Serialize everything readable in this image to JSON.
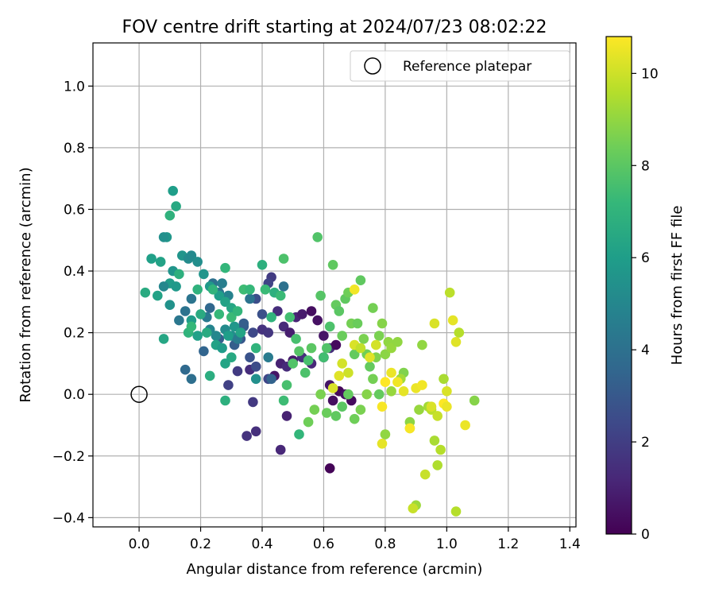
{
  "chart_data": {
    "type": "scatter",
    "title": "FOV centre drift starting at 2024/07/23 08:02:22",
    "xlabel": "Angular distance from reference (arcmin)",
    "ylabel": "Rotation from reference (arcmin)",
    "xlim": [
      -0.15,
      1.42
    ],
    "ylim": [
      -0.43,
      1.14
    ],
    "xticks": [
      "0.0",
      "0.2",
      "0.4",
      "0.6",
      "0.8",
      "1.0",
      "1.2",
      "1.4"
    ],
    "yticks": [
      "−0.4",
      "−0.2",
      "0.0",
      "0.2",
      "0.4",
      "0.6",
      "0.8",
      "1.0"
    ],
    "xtick_values": [
      0.0,
      0.2,
      0.4,
      0.6,
      0.8,
      1.0,
      1.2,
      1.4
    ],
    "ytick_values": [
      -0.4,
      -0.2,
      0.0,
      0.2,
      0.4,
      0.6,
      0.8,
      1.0
    ],
    "grid": true,
    "legend": {
      "position": "top-right",
      "entries": [
        "Reference platepar"
      ]
    },
    "reference_point": {
      "x": 0.0,
      "y": 0.0
    },
    "colorbar": {
      "label": "Hours from first FF file",
      "range": [
        0,
        10.8
      ],
      "ticks": [
        "0",
        "2",
        "4",
        "6",
        "8",
        "10"
      ],
      "tick_values": [
        0,
        2,
        4,
        6,
        8,
        10
      ],
      "colormap": [
        "#440154",
        "#482878",
        "#3e4989",
        "#31688e",
        "#26828e",
        "#1f9e89",
        "#35b779",
        "#6ece58",
        "#b5de2b",
        "#fde725"
      ]
    },
    "series": [
      {
        "points": [
          [
            0.62,
            -0.24,
            0.1
          ],
          [
            0.46,
            -0.18,
            1.2
          ],
          [
            0.38,
            -0.12,
            1.5
          ],
          [
            0.35,
            -0.135,
            1.6
          ],
          [
            0.48,
            -0.07,
            1.0
          ],
          [
            0.37,
            -0.025,
            1.8
          ],
          [
            0.29,
            0.03,
            2.1
          ],
          [
            0.32,
            0.075,
            1.9
          ],
          [
            0.36,
            0.08,
            1.4
          ],
          [
            0.38,
            0.09,
            1.2
          ],
          [
            0.42,
            0.05,
            2.3
          ],
          [
            0.44,
            0.06,
            0.6
          ],
          [
            0.46,
            0.1,
            1.0
          ],
          [
            0.48,
            0.09,
            1.3
          ],
          [
            0.5,
            0.11,
            0.8
          ],
          [
            0.53,
            0.12,
            1.5
          ],
          [
            0.56,
            0.1,
            1.2
          ],
          [
            0.6,
            0.12,
            0.7
          ],
          [
            0.45,
            0.27,
            1.4
          ],
          [
            0.47,
            0.22,
            1.3
          ],
          [
            0.49,
            0.2,
            0.9
          ],
          [
            0.51,
            0.25,
            1.1
          ],
          [
            0.53,
            0.26,
            0.8
          ],
          [
            0.56,
            0.27,
            0.4
          ],
          [
            0.58,
            0.24,
            0.5
          ],
          [
            0.6,
            0.19,
            0.6
          ],
          [
            0.62,
            0.15,
            1.4
          ],
          [
            0.64,
            0.16,
            0.3
          ],
          [
            0.62,
            0.03,
            0.6
          ],
          [
            0.65,
            0.01,
            0.2
          ],
          [
            0.67,
            0.0,
            0.5
          ],
          [
            0.69,
            -0.02,
            0.3
          ],
          [
            0.63,
            -0.02,
            0.4
          ],
          [
            0.4,
            0.21,
            1.6
          ],
          [
            0.42,
            0.2,
            1.7
          ],
          [
            0.43,
            0.38,
            1.9
          ],
          [
            0.42,
            0.36,
            2.2
          ],
          [
            0.38,
            0.31,
            2.6
          ],
          [
            0.4,
            0.26,
            2.7
          ],
          [
            0.37,
            0.2,
            2.4
          ],
          [
            0.34,
            0.22,
            3.1
          ],
          [
            0.36,
            0.12,
            2.8
          ],
          [
            0.38,
            0.09,
            2.5
          ],
          [
            0.33,
            0.18,
            3.0
          ],
          [
            0.31,
            0.16,
            3.2
          ],
          [
            0.26,
            0.18,
            3.3
          ],
          [
            0.21,
            0.14,
            3.5
          ],
          [
            0.17,
            0.05,
            3.9
          ],
          [
            0.15,
            0.08,
            3.7
          ],
          [
            0.13,
            0.24,
            4.3
          ],
          [
            0.15,
            0.27,
            4.1
          ],
          [
            0.17,
            0.31,
            4.2
          ],
          [
            0.22,
            0.25,
            4.4
          ],
          [
            0.23,
            0.28,
            3.6
          ],
          [
            0.24,
            0.36,
            4.0
          ],
          [
            0.26,
            0.33,
            4.2
          ],
          [
            0.27,
            0.36,
            4.6
          ],
          [
            0.29,
            0.32,
            4.8
          ],
          [
            0.23,
            0.21,
            4.9
          ],
          [
            0.25,
            0.19,
            5.0
          ],
          [
            0.28,
            0.21,
            5.2
          ],
          [
            0.3,
            0.19,
            5.3
          ],
          [
            0.32,
            0.18,
            4.5
          ],
          [
            0.34,
            0.23,
            3.2
          ],
          [
            0.36,
            0.31,
            4.1
          ],
          [
            0.42,
            0.12,
            4.5
          ],
          [
            0.43,
            0.05,
            3.4
          ],
          [
            0.38,
            0.05,
            5.4
          ],
          [
            0.47,
            0.35,
            4.0
          ],
          [
            0.09,
            0.51,
            5.7
          ],
          [
            0.08,
            0.51,
            5.4
          ],
          [
            0.11,
            0.4,
            5.6
          ],
          [
            0.1,
            0.36,
            5.9
          ],
          [
            0.08,
            0.35,
            5.0
          ],
          [
            0.1,
            0.29,
            5.5
          ],
          [
            0.12,
            0.35,
            5.8
          ],
          [
            0.14,
            0.45,
            5.6
          ],
          [
            0.16,
            0.44,
            5.2
          ],
          [
            0.17,
            0.45,
            5.1
          ],
          [
            0.19,
            0.43,
            5.3
          ],
          [
            0.21,
            0.39,
            5.6
          ],
          [
            0.23,
            0.35,
            5.8
          ],
          [
            0.26,
            0.32,
            6.0
          ],
          [
            0.28,
            0.3,
            6.2
          ],
          [
            0.3,
            0.28,
            6.4
          ],
          [
            0.17,
            0.24,
            5.9
          ],
          [
            0.19,
            0.19,
            6.1
          ],
          [
            0.22,
            0.2,
            6.6
          ],
          [
            0.25,
            0.16,
            6.2
          ],
          [
            0.27,
            0.15,
            5.9
          ],
          [
            0.29,
            0.19,
            6.0
          ],
          [
            0.31,
            0.22,
            5.7
          ],
          [
            0.33,
            0.2,
            6.3
          ],
          [
            0.3,
            0.12,
            6.5
          ],
          [
            0.28,
            0.1,
            6.3
          ],
          [
            0.23,
            0.06,
            6.7
          ],
          [
            0.28,
            -0.02,
            6.8
          ],
          [
            0.11,
            0.66,
            6.0
          ],
          [
            0.12,
            0.61,
            6.5
          ],
          [
            0.1,
            0.58,
            6.9
          ],
          [
            0.07,
            0.43,
            6.2
          ],
          [
            0.04,
            0.44,
            6.1
          ],
          [
            0.02,
            0.33,
            6.6
          ],
          [
            0.06,
            0.32,
            6.2
          ],
          [
            0.08,
            0.18,
            6.4
          ],
          [
            0.13,
            0.39,
            6.8
          ],
          [
            0.16,
            0.2,
            7.0
          ],
          [
            0.17,
            0.22,
            7.2
          ],
          [
            0.19,
            0.34,
            6.9
          ],
          [
            0.2,
            0.26,
            6.6
          ],
          [
            0.24,
            0.34,
            7.0
          ],
          [
            0.26,
            0.26,
            7.2
          ],
          [
            0.28,
            0.41,
            7.1
          ],
          [
            0.3,
            0.25,
            7.3
          ],
          [
            0.32,
            0.27,
            7.1
          ],
          [
            0.34,
            0.34,
            7.4
          ],
          [
            0.36,
            0.34,
            7.2
          ],
          [
            0.38,
            0.15,
            7.0
          ],
          [
            0.4,
            0.42,
            6.8
          ],
          [
            0.41,
            0.34,
            7.3
          ],
          [
            0.43,
            0.25,
            7.0
          ],
          [
            0.44,
            0.33,
            6.8
          ],
          [
            0.46,
            0.32,
            7.3
          ],
          [
            0.47,
            0.44,
            7.7
          ],
          [
            0.49,
            0.25,
            7.5
          ],
          [
            0.51,
            0.18,
            7.6
          ],
          [
            0.52,
            -0.13,
            7.1
          ],
          [
            0.47,
            -0.02,
            7.4
          ],
          [
            0.48,
            0.03,
            7.6
          ],
          [
            0.5,
            0.1,
            7.8
          ],
          [
            0.52,
            0.14,
            7.9
          ],
          [
            0.54,
            0.07,
            7.7
          ],
          [
            0.55,
            0.11,
            7.6
          ],
          [
            0.56,
            0.15,
            8.0
          ],
          [
            0.58,
            0.51,
            7.8
          ],
          [
            0.59,
            0.32,
            7.9
          ],
          [
            0.6,
            0.12,
            7.5
          ],
          [
            0.61,
            0.15,
            7.8
          ],
          [
            0.62,
            0.22,
            7.7
          ],
          [
            0.63,
            0.42,
            8.1
          ],
          [
            0.64,
            0.29,
            8.2
          ],
          [
            0.65,
            0.27,
            8.0
          ],
          [
            0.66,
            0.19,
            8.3
          ],
          [
            0.67,
            0.31,
            8.1
          ],
          [
            0.68,
            0.33,
            8.4
          ],
          [
            0.69,
            0.23,
            8.5
          ],
          [
            0.7,
            0.13,
            8.2
          ],
          [
            0.71,
            0.23,
            8.3
          ],
          [
            0.72,
            0.37,
            8.1
          ],
          [
            0.73,
            0.18,
            8.6
          ],
          [
            0.74,
            0.13,
            8.4
          ],
          [
            0.75,
            0.09,
            8.2
          ],
          [
            0.76,
            0.28,
            8.5
          ],
          [
            0.77,
            0.12,
            8.7
          ],
          [
            0.78,
            0.19,
            8.6
          ],
          [
            0.79,
            0.23,
            8.8
          ],
          [
            0.8,
            0.13,
            8.9
          ],
          [
            0.81,
            0.17,
            9.0
          ],
          [
            0.82,
            0.15,
            9.1
          ],
          [
            0.84,
            0.17,
            9.0
          ],
          [
            0.86,
            0.07,
            8.7
          ],
          [
            0.88,
            -0.09,
            8.9
          ],
          [
            0.9,
            -0.36,
            9.2
          ],
          [
            0.92,
            0.16,
            9.0
          ],
          [
            0.94,
            -0.04,
            9.3
          ],
          [
            0.96,
            -0.15,
            9.4
          ],
          [
            0.97,
            -0.23,
            9.5
          ],
          [
            0.98,
            -0.18,
            9.6
          ],
          [
            0.99,
            0.05,
            9.4
          ],
          [
            1.01,
            0.33,
            9.7
          ],
          [
            1.04,
            0.2,
            9.6
          ],
          [
            1.09,
            -0.02,
            8.8
          ],
          [
            0.55,
            -0.09,
            8.4
          ],
          [
            0.57,
            -0.05,
            8.5
          ],
          [
            0.59,
            0.0,
            8.6
          ],
          [
            0.61,
            -0.06,
            8.3
          ],
          [
            0.64,
            -0.07,
            8.1
          ],
          [
            0.66,
            -0.04,
            8.0
          ],
          [
            0.68,
            0.0,
            8.2
          ],
          [
            0.7,
            -0.08,
            8.4
          ],
          [
            0.72,
            -0.05,
            8.6
          ],
          [
            0.74,
            0.0,
            8.8
          ],
          [
            0.76,
            0.05,
            8.5
          ],
          [
            0.78,
            0.0,
            8.2
          ],
          [
            0.8,
            -0.13,
            9.0
          ],
          [
            0.82,
            0.01,
            9.1
          ],
          [
            0.85,
            0.05,
            9.3
          ],
          [
            0.88,
            -0.11,
            9.8
          ],
          [
            0.89,
            -0.37,
            9.9
          ],
          [
            0.91,
            -0.05,
            9.1
          ],
          [
            0.93,
            -0.26,
            9.9
          ],
          [
            0.95,
            -0.05,
            9.7
          ],
          [
            0.96,
            0.23,
            10.2
          ],
          [
            0.97,
            -0.07,
            9.9
          ],
          [
            1.0,
            0.01,
            10.2
          ],
          [
            1.02,
            0.24,
            10.4
          ],
          [
            1.03,
            0.17,
            10.3
          ],
          [
            1.06,
            -0.1,
            10.5
          ],
          [
            1.03,
            -0.38,
            9.6
          ],
          [
            0.7,
            0.34,
            10.6
          ],
          [
            0.66,
            0.1,
            10.1
          ],
          [
            0.68,
            0.07,
            10.0
          ],
          [
            0.7,
            0.16,
            10.2
          ],
          [
            0.72,
            0.15,
            9.8
          ],
          [
            0.75,
            0.12,
            10.3
          ],
          [
            0.77,
            0.16,
            10.1
          ],
          [
            0.79,
            -0.04,
            10.7
          ],
          [
            0.79,
            -0.16,
            10.4
          ],
          [
            0.8,
            0.04,
            10.8
          ],
          [
            0.82,
            0.07,
            10.5
          ],
          [
            0.84,
            0.04,
            10.6
          ],
          [
            0.86,
            0.01,
            10.4
          ],
          [
            0.88,
            -0.11,
            10.7
          ],
          [
            0.9,
            0.02,
            10.5
          ],
          [
            0.92,
            0.03,
            10.6
          ],
          [
            0.95,
            -0.04,
            10.2
          ],
          [
            0.99,
            -0.03,
            10.8
          ],
          [
            1.0,
            -0.04,
            10.5
          ],
          [
            0.63,
            0.02,
            10.2
          ],
          [
            0.65,
            0.06,
            10.3
          ]
        ]
      }
    ]
  }
}
